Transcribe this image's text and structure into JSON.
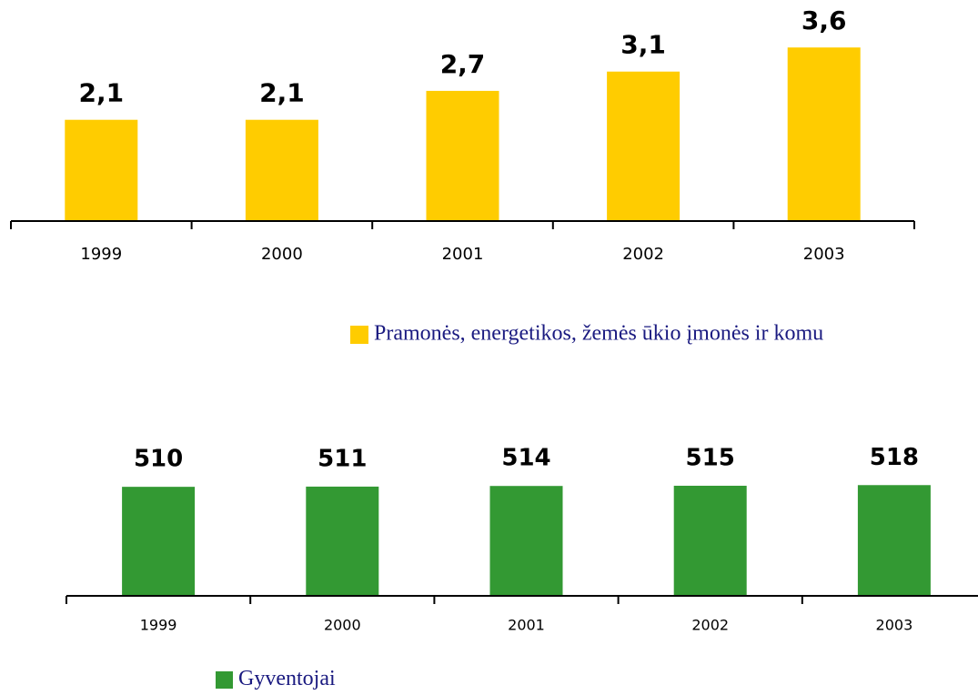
{
  "chart_data": [
    {
      "type": "bar",
      "categories": [
        "1999",
        "2000",
        "2001",
        "2002",
        "2003"
      ],
      "series": [
        {
          "name": "Pramonės, energetikos, žemės ūkio įmonės ir komu",
          "color": "#ffcc00",
          "values": [
            2.1,
            2.1,
            2.7,
            3.1,
            3.6
          ],
          "value_labels": [
            "2,1",
            "2,1",
            "2,7",
            "3,1",
            "3,6"
          ]
        }
      ],
      "ylim": [
        0,
        4
      ]
    },
    {
      "type": "bar",
      "categories": [
        "1999",
        "2000",
        "2001",
        "2002",
        "2003"
      ],
      "series": [
        {
          "name": "Gyventojai",
          "color": "#339933",
          "values": [
            510,
            511,
            514,
            515,
            518
          ]
        }
      ],
      "ylim": [
        0,
        600
      ]
    }
  ]
}
